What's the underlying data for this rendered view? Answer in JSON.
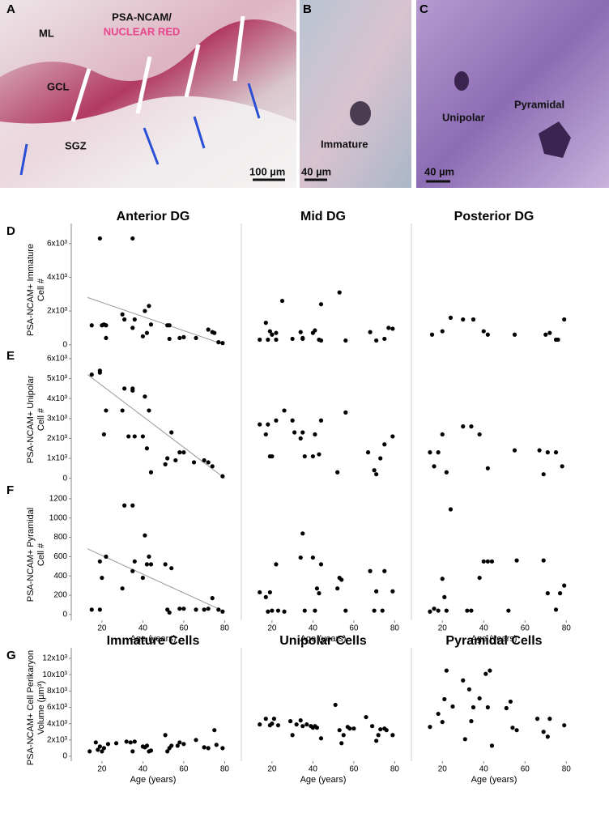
{
  "micrographs": [
    {
      "label": "A",
      "texts": [
        "ML",
        "PSA-NCAM/",
        "NUCLEAR RED",
        "GCL",
        "SGZ"
      ],
      "scale_bar": "100 µm"
    },
    {
      "label": "B",
      "texts": [
        "Immature"
      ],
      "scale_bar": "40 µm"
    },
    {
      "label": "C",
      "texts": [
        "Unipolar",
        "Pyramidal"
      ],
      "scale_bar": "40 µm"
    }
  ],
  "chart_data": [
    {
      "type": "scatter",
      "panel_label": "D",
      "title": "Anterior DG",
      "ylabel": [
        "PSA-NCAM+ Immature",
        "Cell #"
      ],
      "x": [
        15,
        19,
        20,
        21,
        22,
        22,
        30,
        31,
        35,
        35,
        36,
        40,
        41,
        42,
        43,
        44,
        52,
        53,
        53,
        58,
        60,
        66,
        72,
        74,
        75,
        77,
        79
      ],
      "y": [
        1150,
        6300,
        1150,
        1200,
        1150,
        400,
        1800,
        1500,
        6300,
        1000,
        1500,
        500,
        2000,
        700,
        2300,
        1200,
        1150,
        1150,
        350,
        400,
        450,
        400,
        900,
        750,
        700,
        150,
        100
      ],
      "fit": {
        "x": [
          13,
          80
        ],
        "y": [
          2800,
          0
        ]
      },
      "xlim": [
        5,
        85
      ],
      "ylim": [
        -300,
        6800
      ],
      "yticks": [
        0,
        {
          "value": 2000,
          "label": "2x10³"
        },
        {
          "value": 4000,
          "label": "4x10³"
        },
        {
          "value": 6000,
          "label": "6x10³"
        }
      ]
    },
    {
      "type": "scatter",
      "title": "Mid DG",
      "x": [
        14,
        17,
        18,
        19,
        20,
        22,
        22,
        25,
        30,
        34,
        35,
        35,
        40,
        41,
        43,
        44,
        44,
        53,
        56,
        68,
        71,
        75,
        77,
        79
      ],
      "y": [
        300,
        1300,
        300,
        800,
        600,
        700,
        300,
        2600,
        350,
        750,
        400,
        350,
        700,
        850,
        300,
        2400,
        250,
        3100,
        250,
        750,
        250,
        350,
        1000,
        950
      ],
      "xlim": [
        5,
        85
      ],
      "ylim": [
        -300,
        6800
      ]
    },
    {
      "type": "scatter",
      "title": "Posterior DG",
      "x": [
        15,
        20,
        24,
        30,
        35,
        40,
        42,
        55,
        70,
        72,
        75,
        76,
        79
      ],
      "y": [
        600,
        800,
        1600,
        1500,
        1500,
        800,
        600,
        600,
        600,
        700,
        300,
        300,
        1500
      ],
      "xlim": [
        5,
        85
      ],
      "ylim": [
        -300,
        6800
      ]
    },
    {
      "type": "scatter",
      "panel_label": "E",
      "ylabel": [
        "PSA-NCAM+ Unipolar",
        "Cell #"
      ],
      "x": [
        15,
        19,
        19,
        21,
        22,
        30,
        31,
        33,
        35,
        35,
        36,
        40,
        41,
        42,
        43,
        44,
        51,
        52,
        54,
        56,
        58,
        60,
        65,
        70,
        72,
        74,
        79
      ],
      "y": [
        5200,
        5300,
        5400,
        2200,
        3400,
        3400,
        4500,
        2100,
        4400,
        4500,
        2100,
        2100,
        4100,
        1500,
        3400,
        300,
        700,
        1000,
        2300,
        900,
        1300,
        1300,
        800,
        900,
        800,
        600,
        100
      ],
      "fit": {
        "x": [
          13,
          80
        ],
        "y": [
          5200,
          0
        ]
      },
      "xlim": [
        5,
        85
      ],
      "ylim": [
        -300,
        6200
      ],
      "yticks": [
        0,
        {
          "value": 1000,
          "label": "1x10³"
        },
        {
          "value": 2000,
          "label": "2x10³"
        },
        {
          "value": 3000,
          "label": "3x10³"
        },
        {
          "value": 4000,
          "label": "4x10³"
        },
        {
          "value": 5000,
          "label": "5x10³"
        },
        {
          "value": 6000,
          "label": "6x10³"
        }
      ]
    },
    {
      "type": "scatter",
      "x": [
        14,
        17,
        18,
        19,
        20,
        22,
        26,
        30,
        31,
        34,
        35,
        36,
        40,
        41,
        43,
        44,
        52,
        56,
        67,
        70,
        71,
        73,
        75,
        79
      ],
      "y": [
        2700,
        2200,
        2700,
        1100,
        1100,
        2900,
        3400,
        2900,
        2300,
        2000,
        2300,
        1100,
        1100,
        2200,
        1200,
        2900,
        300,
        3300,
        1300,
        400,
        200,
        1000,
        1700,
        2100
      ],
      "xlim": [
        5,
        85
      ],
      "ylim": [
        -300,
        6200
      ]
    },
    {
      "type": "scatter",
      "x": [
        14,
        16,
        18,
        20,
        22,
        30,
        34,
        38,
        42,
        55,
        67,
        69,
        71,
        75,
        78
      ],
      "y": [
        1300,
        600,
        1300,
        2200,
        300,
        2600,
        2600,
        2200,
        500,
        1400,
        1400,
        200,
        1300,
        1300,
        600
      ],
      "xlim": [
        5,
        85
      ],
      "ylim": [
        -300,
        6200
      ]
    },
    {
      "type": "scatter",
      "panel_label": "F",
      "ylabel": [
        "PSA-NCAM+ Pyramidal",
        "Cell #"
      ],
      "xlabel": "Age (years)",
      "x": [
        15,
        19,
        19,
        20,
        22,
        30,
        31,
        35,
        35,
        36,
        40,
        41,
        42,
        43,
        44,
        51,
        52,
        53,
        54,
        58,
        60,
        66,
        70,
        72,
        74,
        77,
        79
      ],
      "y": [
        50,
        50,
        550,
        380,
        600,
        270,
        1130,
        450,
        1130,
        550,
        380,
        820,
        520,
        600,
        520,
        520,
        50,
        20,
        480,
        60,
        60,
        50,
        50,
        60,
        170,
        50,
        30
      ],
      "fit": {
        "x": [
          13,
          80
        ],
        "y": [
          680,
          30
        ]
      },
      "xlim": [
        5,
        85
      ],
      "ylim": [
        -60,
        1300
      ],
      "xticks": [
        20,
        40,
        60,
        80
      ],
      "yticks": [
        0,
        200,
        400,
        600,
        800,
        1000,
        1200
      ]
    },
    {
      "type": "scatter",
      "xlabel": "Age (years)",
      "x": [
        14,
        17,
        18,
        19,
        20,
        22,
        23,
        26,
        34,
        35,
        36,
        40,
        41,
        42,
        43,
        44,
        52,
        53,
        54,
        56,
        68,
        70,
        71,
        74,
        75,
        79
      ],
      "y": [
        230,
        180,
        30,
        230,
        40,
        520,
        40,
        30,
        590,
        840,
        40,
        590,
        40,
        270,
        220,
        520,
        270,
        380,
        360,
        40,
        450,
        40,
        240,
        40,
        450,
        240
      ],
      "xlim": [
        5,
        85
      ],
      "ylim": [
        -60,
        1300
      ],
      "xticks": [
        20,
        40,
        60,
        80
      ]
    },
    {
      "type": "scatter",
      "xlabel": "Age (years)",
      "x": [
        14,
        16,
        18,
        20,
        21,
        22,
        24,
        32,
        34,
        38,
        40,
        42,
        44,
        52,
        56,
        69,
        71,
        75,
        77,
        79
      ],
      "y": [
        30,
        60,
        40,
        370,
        180,
        40,
        1090,
        40,
        40,
        380,
        550,
        550,
        550,
        40,
        560,
        560,
        220,
        50,
        220,
        300
      ],
      "xlim": [
        5,
        85
      ],
      "ylim": [
        -60,
        1300
      ],
      "xticks": [
        20,
        40,
        60,
        80
      ]
    },
    {
      "type": "scatter",
      "panel_label": "G",
      "title": "Immature Cells",
      "ylabel": [
        "PSA-NCAM+ Cell Perikaryon",
        "Volume (µm³)"
      ],
      "xlabel": "Age (years)",
      "x": [
        14,
        17,
        18,
        19,
        20,
        21,
        23,
        27,
        32,
        34,
        35,
        36,
        40,
        41,
        42,
        43,
        44,
        51,
        52,
        53,
        54,
        57,
        58,
        60,
        66,
        70,
        72,
        75,
        76,
        79
      ],
      "y": [
        600,
        1700,
        800,
        1200,
        600,
        1000,
        1500,
        1600,
        1800,
        1700,
        600,
        1800,
        1200,
        1100,
        1300,
        600,
        700,
        2600,
        600,
        1000,
        1300,
        1300,
        1700,
        1500,
        2000,
        1100,
        1000,
        3200,
        1400,
        1000
      ],
      "xlim": [
        5,
        85
      ],
      "ylim": [
        -600,
        12500
      ],
      "xticks": [
        20,
        40,
        60,
        80
      ],
      "yticks": [
        0,
        {
          "value": 2000,
          "label": "2x10³"
        },
        {
          "value": 4000,
          "label": "4x10³"
        },
        {
          "value": 6000,
          "label": "6x10³"
        },
        {
          "value": 8000,
          "label": "8x10³"
        },
        {
          "value": 10000,
          "label": "10x10³"
        },
        {
          "value": 12000,
          "label": "12x10³"
        }
      ]
    },
    {
      "type": "scatter",
      "title": "Unipolar Cells",
      "xlabel": "Age (years)",
      "x": [
        14,
        17,
        19,
        20,
        21,
        23,
        29,
        30,
        32,
        34,
        35,
        37,
        39,
        40,
        41,
        42,
        44,
        51,
        53,
        54,
        55,
        57,
        58,
        60,
        66,
        69,
        71,
        72,
        73,
        75,
        76,
        79
      ],
      "y": [
        3900,
        4600,
        3800,
        4000,
        4600,
        3800,
        4300,
        2600,
        3900,
        4400,
        3700,
        3900,
        3700,
        3500,
        3700,
        3500,
        2200,
        6300,
        3200,
        1600,
        2600,
        3600,
        3400,
        3400,
        4800,
        3700,
        1900,
        2600,
        3300,
        3400,
        3200,
        2600
      ],
      "xlim": [
        5,
        85
      ],
      "ylim": [
        -600,
        12500
      ],
      "xticks": [
        20,
        40,
        60,
        80
      ]
    },
    {
      "type": "scatter",
      "title": "Pyramidal Cells",
      "xlabel": "Age (years)",
      "x": [
        14,
        18,
        20,
        21,
        22,
        25,
        30,
        31,
        33,
        34,
        35,
        38,
        41,
        42,
        43,
        44,
        51,
        53,
        54,
        56,
        66,
        69,
        71,
        72,
        79
      ],
      "y": [
        3600,
        5200,
        4200,
        7000,
        10500,
        6100,
        9300,
        2100,
        8200,
        4300,
        6000,
        7100,
        10100,
        6000,
        10500,
        1300,
        5900,
        6700,
        3500,
        3200,
        4600,
        3000,
        2400,
        4600,
        3800
      ],
      "xlim": [
        5,
        85
      ],
      "ylim": [
        -600,
        12500
      ],
      "xticks": [
        20,
        40,
        60,
        80
      ]
    }
  ]
}
